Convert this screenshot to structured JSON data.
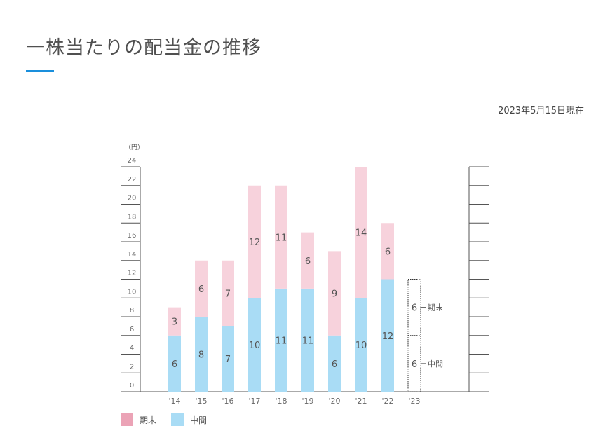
{
  "header": {
    "title": "一株当たりの配当金の推移",
    "as_of": "2023年5月15日現在"
  },
  "chart_data": {
    "type": "bar",
    "stacked": true,
    "title": "一株当たりの配当金の推移",
    "ylabel": "（円）",
    "ylim": [
      0,
      24
    ],
    "yticks": [
      0,
      2,
      4,
      6,
      8,
      10,
      12,
      14,
      16,
      18,
      20,
      22,
      24
    ],
    "categories": [
      "'14",
      "'15",
      "'16",
      "'17",
      "'18",
      "'19",
      "'20",
      "'21",
      "'22",
      "'23"
    ],
    "series": [
      {
        "name": "中間",
        "color": "#a9dcf5",
        "values": [
          6,
          8,
          7,
          10,
          11,
          11,
          6,
          10,
          12,
          6
        ]
      },
      {
        "name": "期末",
        "color": "#f7d2dc",
        "values": [
          3,
          6,
          7,
          12,
          11,
          6,
          9,
          14,
          6,
          6
        ]
      }
    ],
    "forecast_index": 9,
    "forecast_labels": {
      "interim": "中間",
      "final": "期末"
    },
    "legend": [
      {
        "label": "期末",
        "color": "#eba3b6"
      },
      {
        "label": "中間",
        "color": "#a9dcf5"
      }
    ],
    "legend_position": "bottom-left"
  }
}
